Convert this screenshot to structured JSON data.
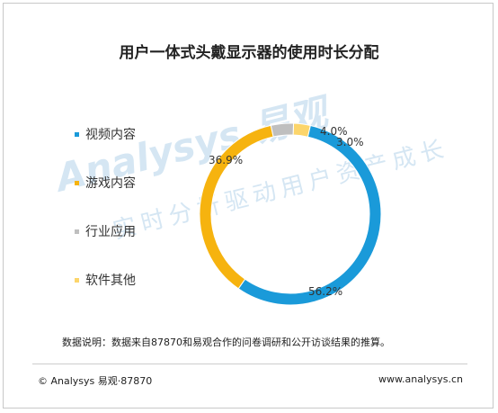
{
  "chart_data": {
    "type": "pie",
    "title": "用户一体式头戴显示器的使用时长分配",
    "categories": [
      "视频内容",
      "游戏内容",
      "行业应用",
      "软件其他"
    ],
    "values": [
      56.2,
      36.9,
      4.0,
      3.0
    ],
    "value_labels": [
      "56.2%",
      "36.9%",
      "4.0%",
      "3.0%"
    ],
    "colors": [
      "#1a9ad9",
      "#f6b30f",
      "#bfbfbf",
      "#fcd56b"
    ],
    "donut": true,
    "legend_position": "left"
  },
  "watermark": {
    "logo": "Analysys 易观",
    "slogan": "实时分析驱动用户资产成长"
  },
  "note": "数据说明：数据来自87870和易观合作的问卷调研和公开访谈结果的推算。",
  "footer": {
    "left": "© Analysys 易观·87870",
    "right": "www.analysys.cn"
  }
}
